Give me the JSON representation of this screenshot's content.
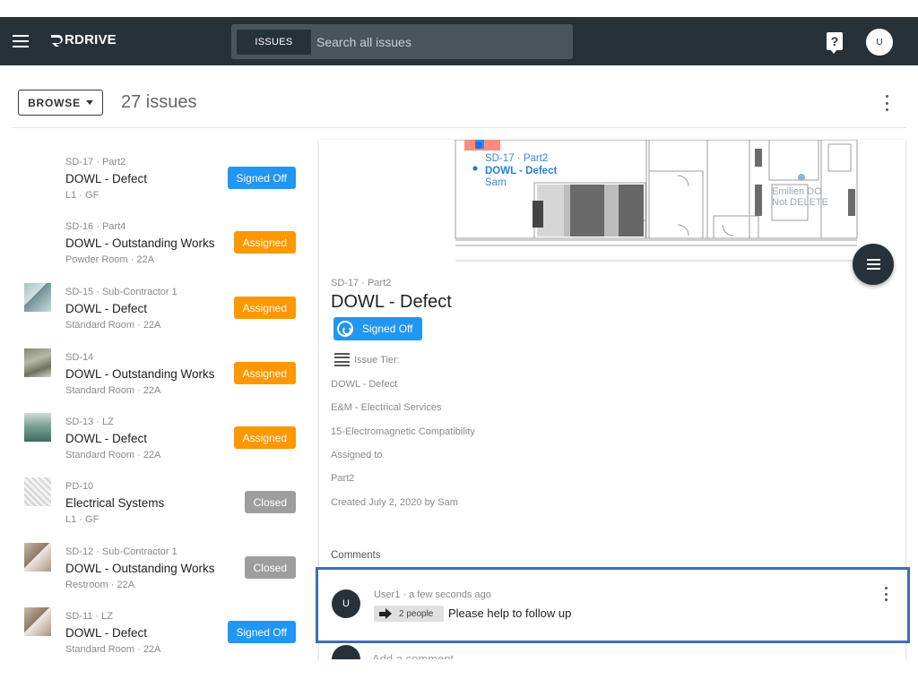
{
  "header": {
    "brand": "RDRIVE",
    "search_tab": "ISSUES",
    "search_placeholder": "Search all issues",
    "help_glyph": "?",
    "user_initial": "U"
  },
  "toolbar": {
    "browse_label": "BROWSE",
    "issue_count": "27 issues"
  },
  "issues": [
    {
      "id": "SD-17 · Part2",
      "title": "DOWL - Defect",
      "location": "L1 · GF",
      "status": "Signed Off",
      "status_type": "signed",
      "thumb": ""
    },
    {
      "id": "SD-16 · Part4",
      "title": "DOWL - Outstanding Works",
      "location": "Powder Room · 22A",
      "status": "Assigned",
      "status_type": "assigned",
      "thumb": ""
    },
    {
      "id": "SD-15 · Sub-Contractor 1",
      "title": "DOWL - Defect",
      "location": "Standard Room · 22A",
      "status": "Assigned",
      "status_type": "assigned",
      "thumb": "t1"
    },
    {
      "id": "SD-14",
      "title": "DOWL - Outstanding Works",
      "location": "Standard Room · 22A",
      "status": "Assigned",
      "status_type": "assigned",
      "thumb": "t2"
    },
    {
      "id": "SD-13 · LZ",
      "title": "DOWL - Defect",
      "location": "Standard Room · 22A",
      "status": "Assigned",
      "status_type": "assigned",
      "thumb": "t3"
    },
    {
      "id": "PD-10",
      "title": "Electrical Systems",
      "location": "L1 · GF",
      "status": "Closed",
      "status_type": "closed",
      "thumb": "t4"
    },
    {
      "id": "SD-12 · Sub-Contractor 1",
      "title": "DOWL - Outstanding Works",
      "location": "Restroom · 22A",
      "status": "Closed",
      "status_type": "closed",
      "thumb": "t5"
    },
    {
      "id": "SD-11 · LZ",
      "title": "DOWL - Defect",
      "location": "Standard Room · 22A",
      "status": "Signed Off",
      "status_type": "signed",
      "thumb": "t5"
    }
  ],
  "detail": {
    "plan_pin": {
      "line1": "SD-17 · Part2",
      "line2": "DOWL - Defect",
      "line3": "Sam"
    },
    "plan_pin2": {
      "line1": "Emilien   DO",
      "line2": "Not DELETE"
    },
    "id": "SD-17 · Part2",
    "title": "DOWL - Defect",
    "status": "Signed Off",
    "tier_label": "Issue Tier:",
    "fields": [
      "DOWL - Defect",
      "E&M - Electrical Services",
      "15-Electromagnetic Compatibility",
      "Assigned to",
      "Part2",
      "Created July 2, 2020 by Sam"
    ],
    "comments_label": "Comments"
  },
  "comment": {
    "avatar": "U",
    "meta": "User1 · a few seconds ago",
    "chip": "2 people",
    "text": "Please help to follow up"
  },
  "add_comment": {
    "placeholder": "Add a comment"
  },
  "colors": {
    "topbar": "#263238",
    "signed": "#2196f3",
    "assigned": "#ff9800",
    "closed": "#9e9e9e",
    "highlight": "#3d6eb8"
  }
}
